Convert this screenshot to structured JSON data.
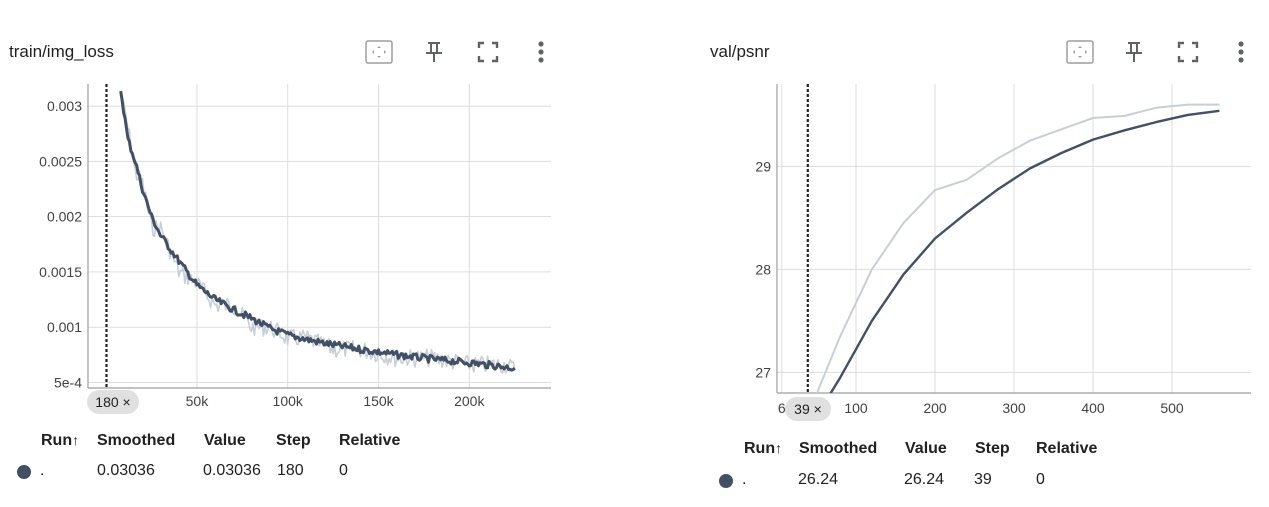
{
  "colors": {
    "smoothed": "#425066",
    "raw": "#c8ced8",
    "grid": "#dddddd",
    "axis": "#9e9e9e",
    "chip_bg": "#e0e0e0",
    "text": "#212121"
  },
  "cards": [
    {
      "title": "train/img_loss",
      "tools": [
        "fit-domain-icon",
        "pin-icon",
        "fullscreen-icon",
        "more-vert-icon"
      ],
      "hover_chip": "180 ×",
      "chart_data": {
        "type": "line",
        "x_label": "",
        "y_label": "",
        "x_ticks": [
          "50k",
          "100k",
          "150k",
          "200k"
        ],
        "y_ticks": [
          "5e-4",
          "0.001",
          "0.0015",
          "0.002",
          "0.0025",
          "0.003"
        ],
        "ylim": [
          0.00045,
          0.0032
        ],
        "xlim": [
          -10000,
          245000
        ],
        "hover_step": 180,
        "series": [
          {
            "role": "smoothed",
            "x": [
              8000,
              12000,
              16000,
              20000,
              25000,
              30000,
              40000,
              50000,
              60000,
              70000,
              80000,
              90000,
              100000,
              110000,
              125000,
              140000,
              160000,
              180000,
              200000,
              220000,
              225000
            ],
            "y": [
              0.00315,
              0.0027,
              0.0025,
              0.00225,
              0.002,
              0.00183,
              0.0016,
              0.00138,
              0.00125,
              0.00116,
              0.00108,
              0.00099,
              0.00093,
              0.00089,
              0.00084,
              0.0008,
              0.00075,
              0.00071,
              0.00068,
              0.00064,
              0.00063
            ]
          },
          {
            "role": "raw",
            "x": [
              8000,
              12000,
              16000,
              20000,
              25000,
              30000,
              40000,
              50000,
              60000,
              70000,
              80000,
              90000,
              100000,
              110000,
              125000,
              140000,
              160000,
              180000,
              200000,
              220000,
              225000
            ],
            "y": [
              0.0031,
              0.0028,
              0.0024,
              0.0023,
              0.0019,
              0.0019,
              0.0015,
              0.0014,
              0.0012,
              0.0012,
              0.001,
              0.001,
              0.0009,
              0.0009,
              0.0008,
              0.0008,
              0.00072,
              0.00072,
              0.00066,
              0.00066,
              0.00062
            ]
          }
        ]
      },
      "table": {
        "headers": [
          "Run",
          "Smoothed",
          "Value",
          "Step",
          "Relative"
        ],
        "sort_arrow": "↑",
        "row": {
          "run": ".",
          "smoothed": "0.03036",
          "value": "0.03036",
          "step": "180",
          "relative": "0"
        }
      }
    },
    {
      "title": "val/psnr",
      "tools": [
        "fit-domain-icon",
        "pin-icon",
        "fullscreen-icon",
        "more-vert-icon"
      ],
      "hover_chip": "39 ×",
      "chart_data": {
        "type": "line",
        "x_label": "",
        "y_label": "",
        "x_ticks": [
          "100",
          "200",
          "300",
          "400",
          "500",
          "6"
        ],
        "y_ticks": [
          "27",
          "28",
          "29"
        ],
        "ylim": [
          26.8,
          29.8
        ],
        "xlim": [
          0,
          600
        ],
        "hover_step": 39,
        "series": [
          {
            "role": "raw",
            "x": [
              40,
              80,
              120,
              160,
              200,
              240,
              280,
              320,
              360,
              400,
              440,
              480,
              520,
              560
            ],
            "y": [
              26.6,
              27.35,
              28.0,
              28.45,
              28.77,
              28.87,
              29.08,
              29.25,
              29.36,
              29.47,
              29.49,
              29.57,
              29.6,
              29.6
            ]
          },
          {
            "role": "smoothed",
            "x": [
              40,
              80,
              120,
              160,
              200,
              240,
              280,
              320,
              360,
              400,
              440,
              480,
              520,
              560
            ],
            "y": [
              26.45,
              26.95,
              27.5,
              27.95,
              28.3,
              28.55,
              28.78,
              28.98,
              29.13,
              29.26,
              29.35,
              29.43,
              29.5,
              29.54
            ]
          }
        ]
      },
      "table": {
        "headers": [
          "Run",
          "Smoothed",
          "Value",
          "Step",
          "Relative"
        ],
        "sort_arrow": "↑",
        "row": {
          "run": ".",
          "smoothed": "26.24",
          "value": "26.24",
          "step": "39",
          "relative": "0"
        }
      }
    }
  ]
}
